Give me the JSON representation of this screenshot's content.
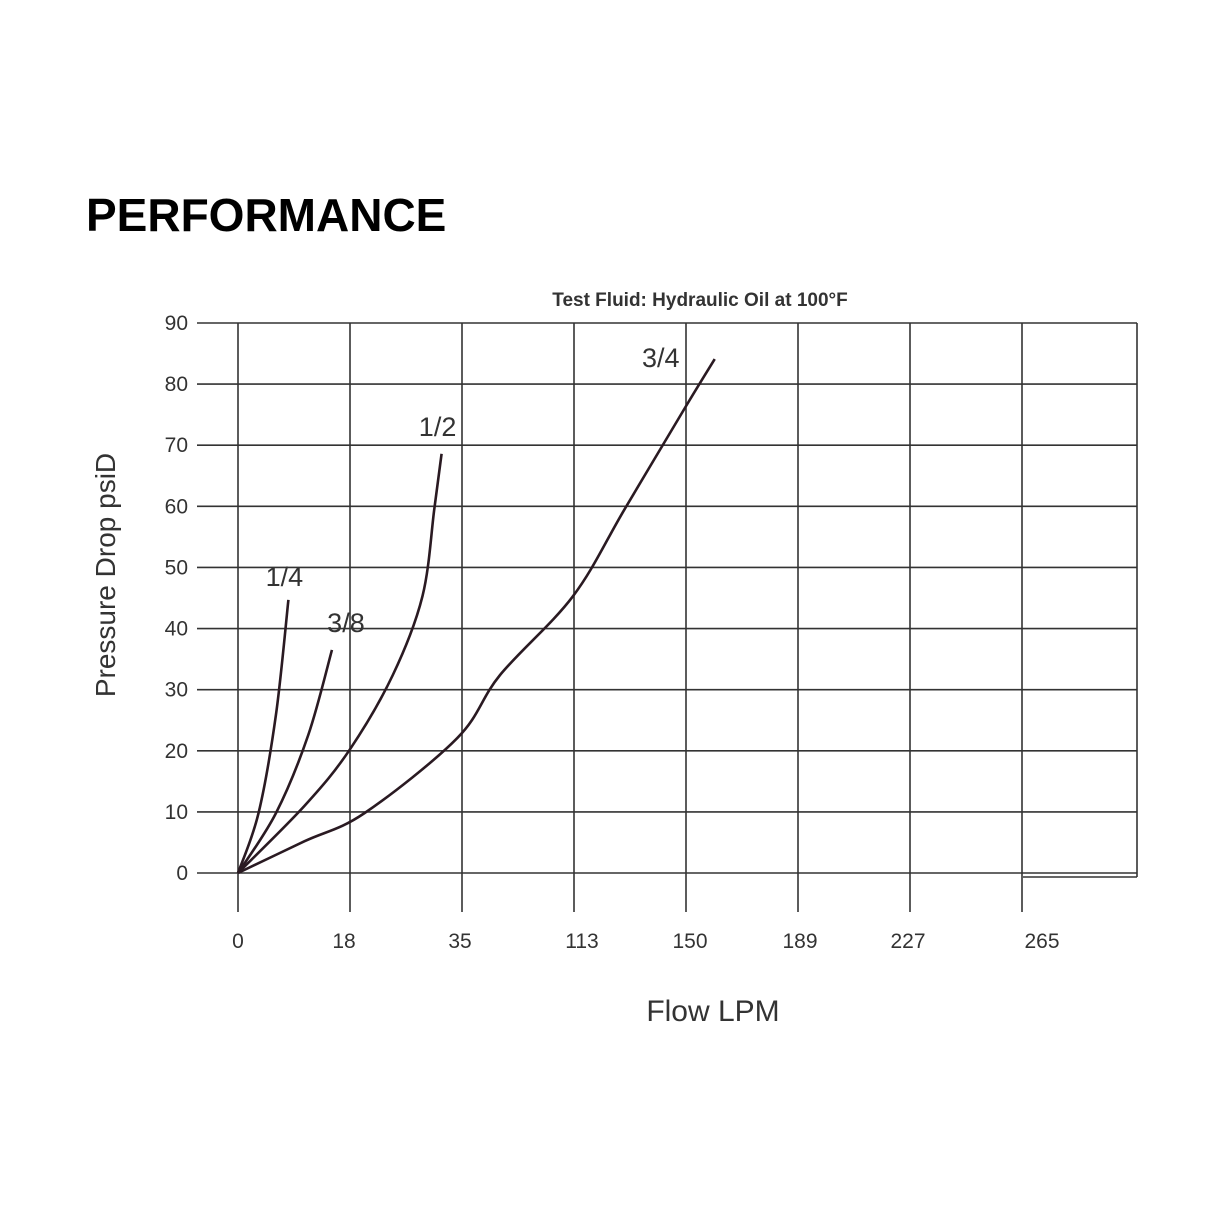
{
  "heading": "PERFORMANCE",
  "chart_data": {
    "type": "line",
    "title": "Test Fluid: Hydraulic Oil at 100°F",
    "xlabel": "Flow LPM",
    "ylabel": "Pressure Drop psiD",
    "x_ticks": [
      0,
      18,
      35,
      113,
      150,
      189,
      227,
      265
    ],
    "x_scale": "non-uniform (equally spaced tick labels)",
    "y_ticks": [
      0,
      10,
      20,
      30,
      40,
      50,
      60,
      70,
      80,
      90
    ],
    "ylim": [
      0,
      90
    ],
    "grid": true,
    "series": [
      {
        "name": "1/4",
        "points": [
          [
            0,
            0
          ],
          [
            3.3,
            9.8
          ],
          [
            6.1,
            25.9
          ],
          [
            8.1,
            44.7
          ]
        ]
      },
      {
        "name": "3/8",
        "points": [
          [
            0,
            0
          ],
          [
            6.1,
            9.8
          ],
          [
            11.3,
            22.6
          ],
          [
            15.1,
            36.5
          ]
        ]
      },
      {
        "name": "1/2",
        "points": [
          [
            0,
            0
          ],
          [
            10.7,
            11
          ],
          [
            17.9,
            20.1
          ],
          [
            24.5,
            32.4
          ],
          [
            29.0,
            45.3
          ],
          [
            30.8,
            59.6
          ],
          [
            31.9,
            68.6
          ]
        ]
      },
      {
        "name": "3/4",
        "points": [
          [
            0,
            0
          ],
          [
            10.7,
            5.2
          ],
          [
            20.2,
            9.8
          ],
          [
            34.3,
            22.1
          ],
          [
            61.5,
            32.4
          ],
          [
            112.3,
            45.3
          ],
          [
            129.8,
            59.6
          ],
          [
            150,
            76.4
          ],
          [
            160,
            84.1
          ]
        ]
      }
    ],
    "line_color": "#2a1a22"
  }
}
